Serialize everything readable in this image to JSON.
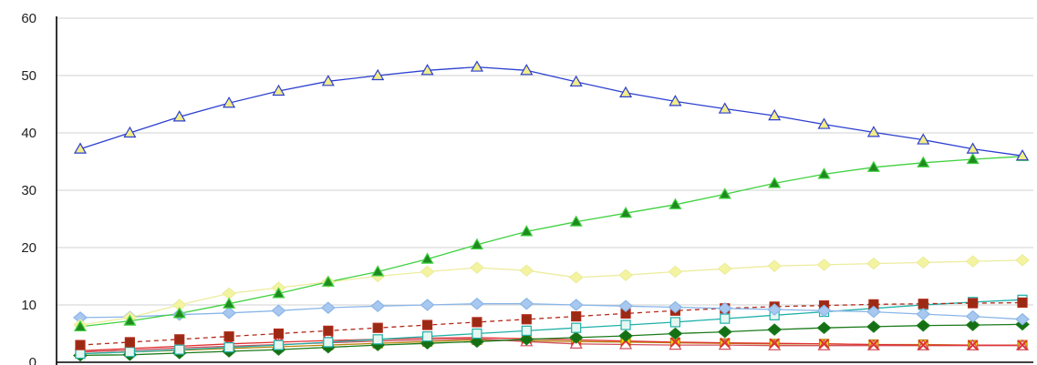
{
  "chart_data": {
    "type": "line",
    "title": "",
    "xlabel": "",
    "ylabel": "",
    "ylim": [
      0,
      60
    ],
    "yticks": [
      0,
      10,
      20,
      30,
      40,
      50,
      60
    ],
    "grid": "horizontal",
    "legend": "none",
    "x": [
      1,
      2,
      3,
      4,
      5,
      6,
      7,
      8,
      9,
      10,
      11,
      12,
      13,
      14,
      15,
      16,
      17,
      18,
      19,
      20
    ],
    "series": [
      {
        "color": "#2b3fcf",
        "marker": "triangle",
        "marker_fill": "#f2ec8a",
        "dash": false,
        "values": [
          37.2,
          40.0,
          42.8,
          45.2,
          47.3,
          49.0,
          50.0,
          50.9,
          51.5,
          50.9,
          48.9,
          47.0,
          45.5,
          44.2,
          43.0,
          41.5,
          40.1,
          38.8,
          37.2,
          36.0
        ]
      },
      {
        "color": "#3fd13f",
        "marker": "triangle",
        "marker_fill": "#1f8a1f",
        "dash": false,
        "values": [
          6.2,
          7.2,
          8.5,
          10.2,
          12.0,
          14.0,
          15.8,
          18.0,
          20.5,
          22.8,
          24.5,
          26.0,
          27.5,
          29.3,
          31.2,
          32.8,
          34.0,
          34.8,
          35.4,
          35.9
        ]
      },
      {
        "color": "#ecec9e",
        "marker": "diamond",
        "marker_fill": "#f4f4a0",
        "dash": false,
        "values": [
          6.5,
          7.8,
          10.0,
          12.0,
          13.0,
          14.0,
          15.0,
          15.8,
          16.5,
          16.0,
          14.8,
          15.2,
          15.8,
          16.3,
          16.8,
          17.0,
          17.2,
          17.4,
          17.6,
          17.8
        ]
      },
      {
        "color": "#8ab6e8",
        "marker": "diamond",
        "marker_fill": "#a8c8f0",
        "dash": false,
        "values": [
          7.8,
          7.9,
          8.3,
          8.6,
          9.0,
          9.5,
          9.8,
          10.0,
          10.2,
          10.2,
          10.0,
          9.8,
          9.6,
          9.4,
          9.2,
          9.0,
          8.8,
          8.4,
          8.0,
          7.5
        ]
      },
      {
        "color": "#b22a1a",
        "marker": "square",
        "marker_fill": "#9b2a14",
        "dash": true,
        "values": [
          3.0,
          3.5,
          4.0,
          4.5,
          5.0,
          5.5,
          6.0,
          6.5,
          7.0,
          7.5,
          8.0,
          8.5,
          9.0,
          9.4,
          9.7,
          9.9,
          10.1,
          10.2,
          10.3,
          10.4
        ]
      },
      {
        "color": "#1fb0a8",
        "marker": "square",
        "marker_fill": "#e6f7f2",
        "dash": false,
        "values": [
          1.5,
          1.8,
          2.2,
          2.6,
          3.0,
          3.5,
          4.0,
          4.5,
          5.0,
          5.5,
          6.0,
          6.5,
          7.0,
          7.6,
          8.2,
          8.8,
          9.4,
          10.0,
          10.5,
          10.9
        ]
      },
      {
        "color": "#1a7a1a",
        "marker": "diamond",
        "marker_fill": "#157015",
        "dash": false,
        "values": [
          1.2,
          1.3,
          1.6,
          1.9,
          2.2,
          2.6,
          3.0,
          3.3,
          3.6,
          4.0,
          4.3,
          4.6,
          5.0,
          5.3,
          5.7,
          6.0,
          6.2,
          6.4,
          6.5,
          6.6
        ]
      },
      {
        "color": "#e03030",
        "marker": "x",
        "marker_fill": "#e03030",
        "dash": false,
        "values": [
          2.0,
          2.4,
          2.8,
          3.2,
          3.5,
          3.8,
          4.0,
          4.2,
          4.3,
          4.1,
          3.9,
          3.7,
          3.5,
          3.4,
          3.3,
          3.2,
          3.1,
          3.0,
          3.0,
          3.0
        ]
      },
      {
        "color": "#d05060",
        "marker": "triangle",
        "marker_fill": "#ffffff",
        "dash": false,
        "values": [
          1.8,
          2.1,
          2.5,
          2.8,
          3.1,
          3.4,
          3.7,
          3.9,
          4.1,
          3.6,
          3.2,
          3.1,
          3.0,
          3.0,
          2.9,
          2.9,
          2.9,
          2.9,
          2.9,
          2.9
        ]
      },
      {
        "color": "#b8860b",
        "marker": "square",
        "marker_fill": "#ffd700",
        "dash": false,
        "values": [
          1.5,
          1.8,
          2.1,
          2.4,
          2.7,
          3.0,
          3.3,
          3.6,
          3.9,
          3.8,
          3.6,
          3.5,
          3.4,
          3.3,
          3.2,
          3.2,
          3.1,
          3.1,
          3.0,
          3.0
        ]
      }
    ]
  }
}
